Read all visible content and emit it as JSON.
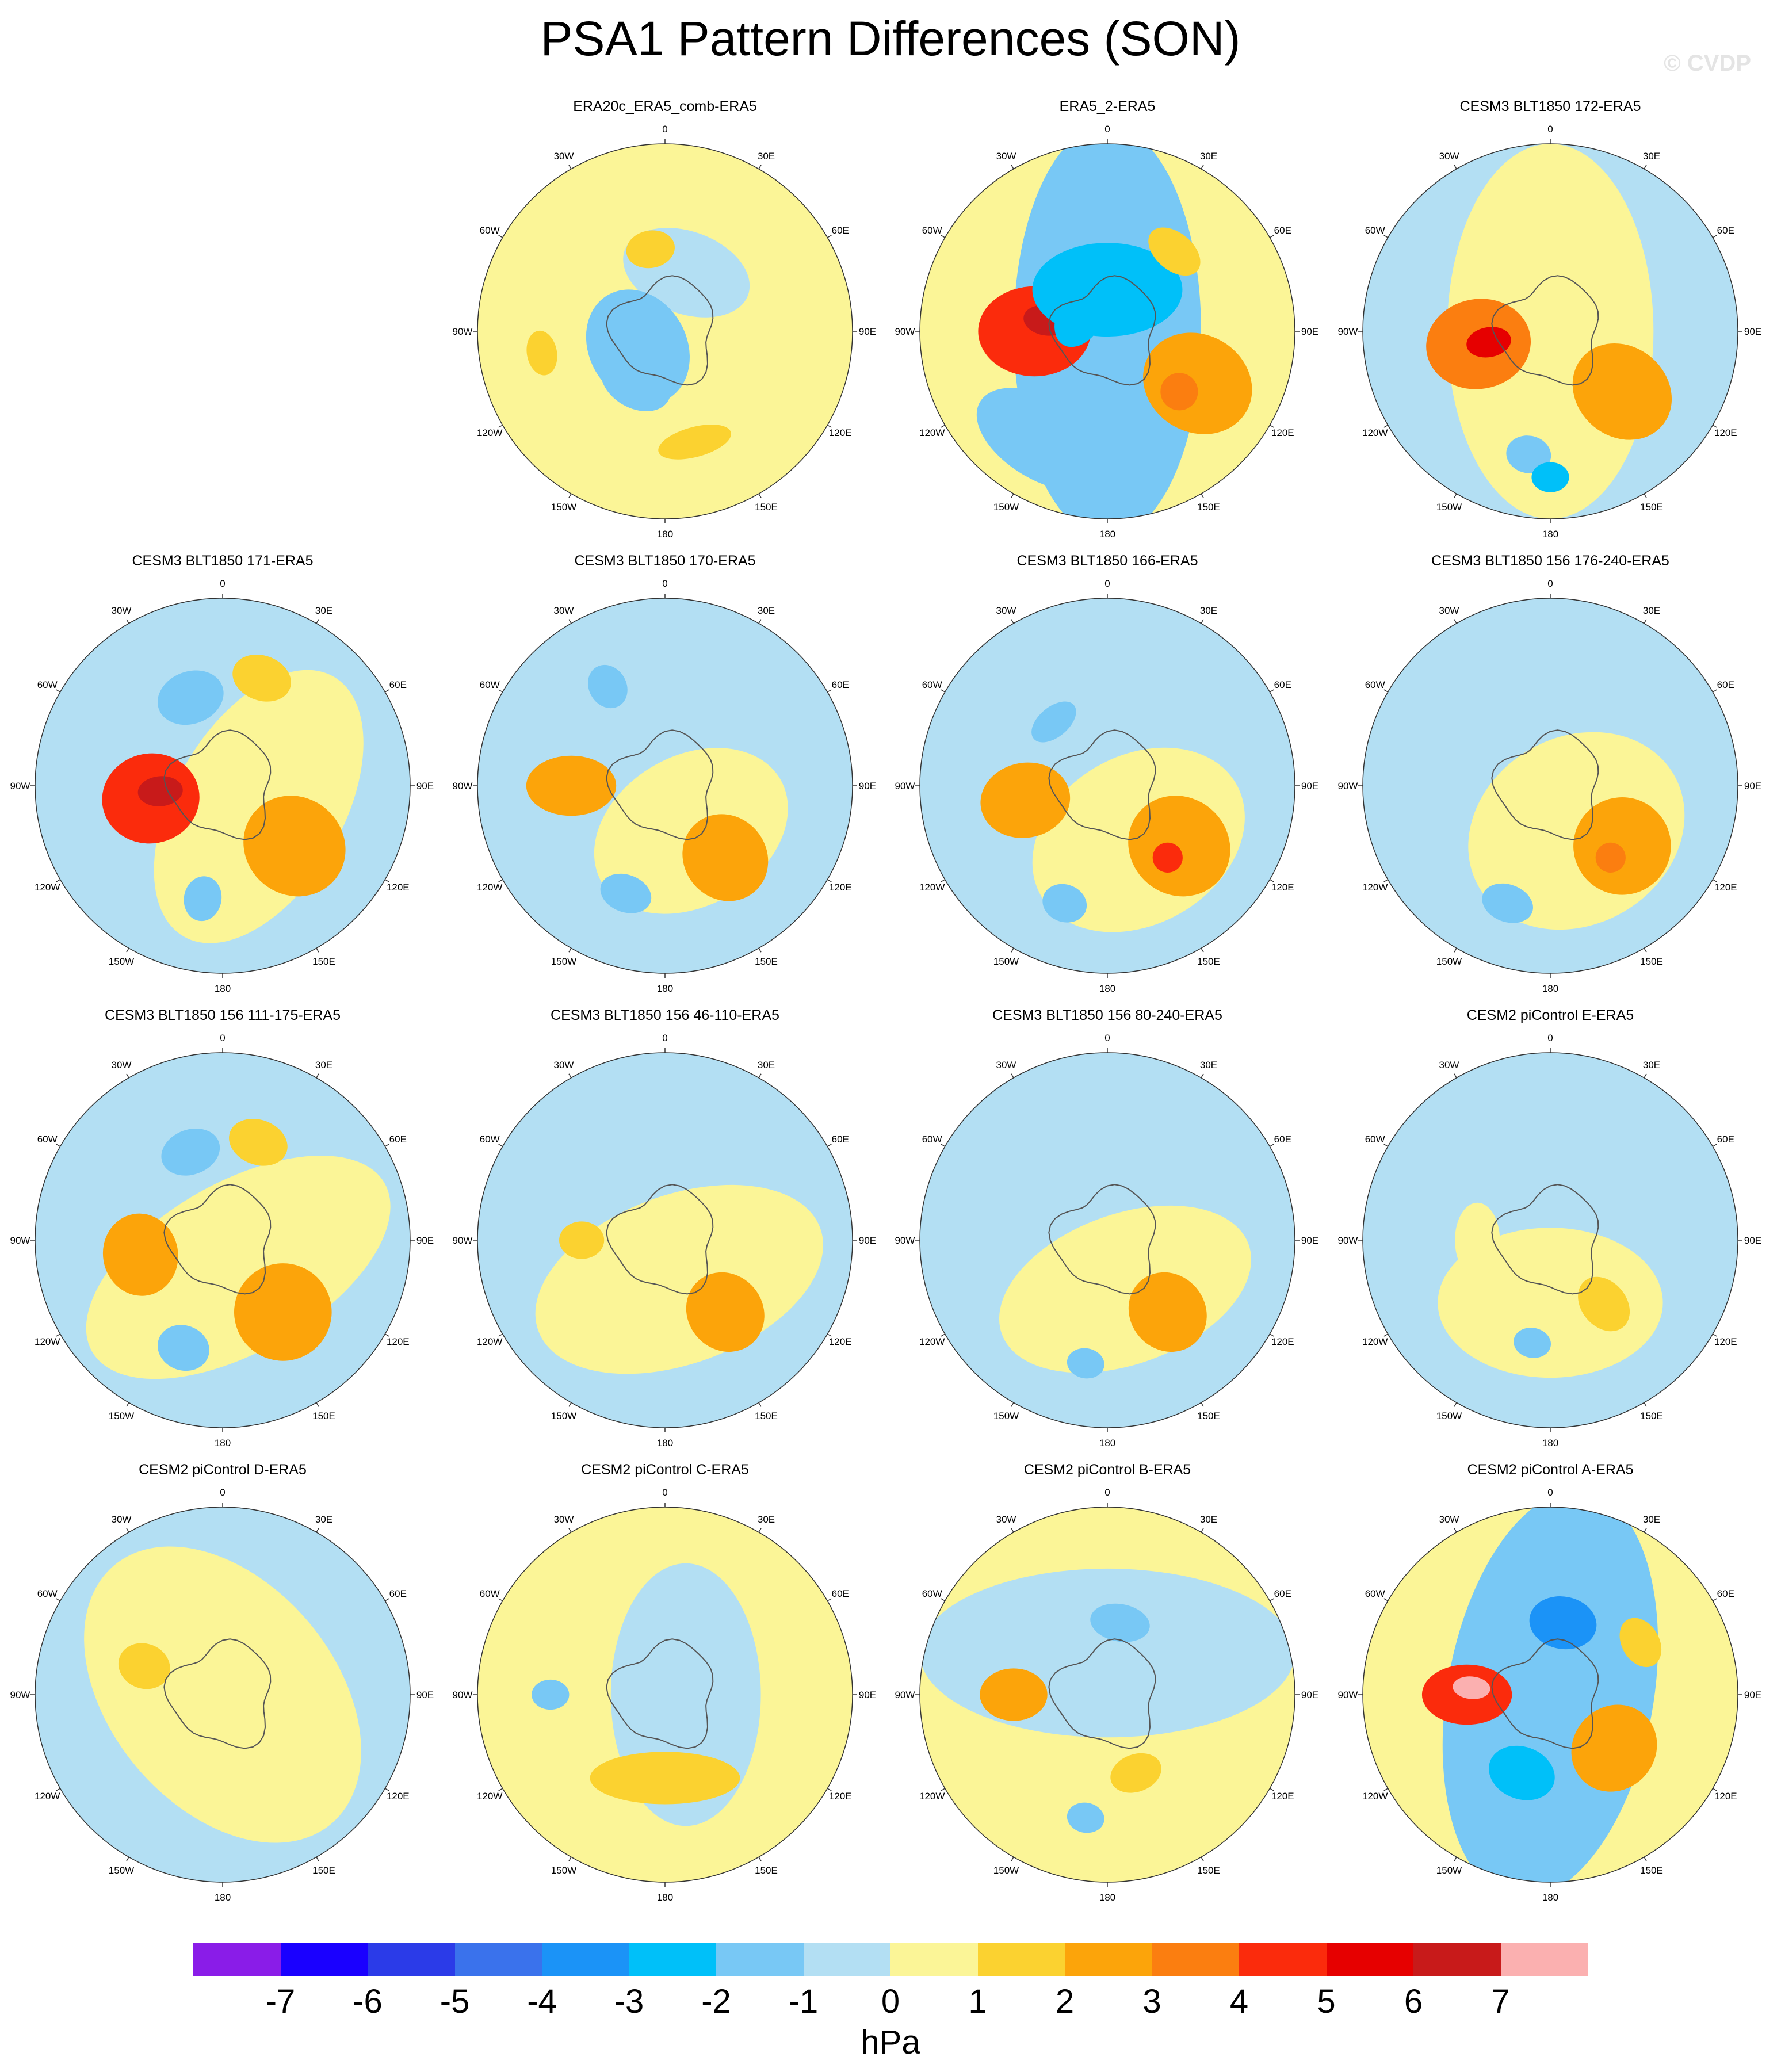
{
  "title": "PSA1 Pattern Differences (SON)",
  "watermark": "© CVDP",
  "colorbar": {
    "labels": [
      "-7",
      "-6",
      "-5",
      "-4",
      "-3",
      "-2",
      "-1",
      "0",
      "1",
      "2",
      "3",
      "4",
      "5",
      "6",
      "7"
    ],
    "colors": [
      "#8a1ce8",
      "#1a00ff",
      "#2b3be8",
      "#3a72ec",
      "#1b93f7",
      "#00c0f9",
      "#78c8f5",
      "#b3dff3",
      "#fbf597",
      "#fbd230",
      "#fca40a",
      "#fb7e10",
      "#fb2b0c",
      "#e60000",
      "#c81a1a",
      "#fbb0b0"
    ],
    "units": "hPa"
  },
  "chart_data": {
    "type": "polar-contour-map",
    "projection": "south-polar-stereographic",
    "variable": "PSA1 pattern difference",
    "units": "hPa",
    "levels": [
      -7,
      -6,
      -5,
      -4,
      -3,
      -2,
      -1,
      0,
      1,
      2,
      3,
      4,
      5,
      6,
      7
    ],
    "longitude_labels": [
      "0",
      "30E",
      "60E",
      "90E",
      "120E",
      "150E",
      "180",
      "150W",
      "120W",
      "90W",
      "60W",
      "30W"
    ],
    "panels": [
      {
        "title": "ERA20c_ERA5_comb-ERA5",
        "row": 0,
        "col": 1,
        "background": 0.5,
        "blobs": [
          {
            "lon": 150,
            "lat": 50,
            "rx": 0.4,
            "ry": 0.42,
            "value": 0.6
          },
          {
            "lon": 20,
            "lat": 30,
            "rx": 0.35,
            "ry": 0.22,
            "value": -0.5
          },
          {
            "lon": -120,
            "lat": 15,
            "rx": 0.32,
            "ry": 0.26,
            "value": -1.5
          },
          {
            "lon": -150,
            "lat": 28,
            "rx": 0.2,
            "ry": 0.14,
            "value": -1.5
          },
          {
            "lon": -100,
            "lat": 60,
            "rx": 0.12,
            "ry": 0.08,
            "value": 1.5
          },
          {
            "lon": 165,
            "lat": 55,
            "rx": 0.2,
            "ry": 0.08,
            "value": 1.5
          },
          {
            "lon": -10,
            "lat": 40,
            "rx": 0.13,
            "ry": 0.1,
            "value": 1.5
          }
        ]
      },
      {
        "title": "ERA5_2-ERA5",
        "row": 0,
        "col": 2,
        "background": 0.5,
        "blobs": [
          {
            "lon": -90,
            "lat": 0,
            "rx": 1.1,
            "ry": 0.5,
            "value": -1.5
          },
          {
            "lon": -90,
            "lat": 35,
            "rx": 0.24,
            "ry": 0.3,
            "value": 4
          },
          {
            "lon": -80,
            "lat": 30,
            "rx": 0.08,
            "ry": 0.12,
            "value": 6.5
          },
          {
            "lon": 0,
            "lat": 20,
            "rx": 0.4,
            "ry": 0.25,
            "value": -2.5
          },
          {
            "lon": -60,
            "lat": 15,
            "rx": 0.18,
            "ry": 0.12,
            "value": -2.5
          },
          {
            "lon": 120,
            "lat": 50,
            "rx": 0.26,
            "ry": 0.3,
            "value": 2.5
          },
          {
            "lon": 130,
            "lat": 45,
            "rx": 0.1,
            "ry": 0.1,
            "value": 3.5
          },
          {
            "lon": -150,
            "lat": 60,
            "rx": 0.4,
            "ry": 0.22,
            "value": -1.5
          },
          {
            "lon": 40,
            "lat": 50,
            "rx": 0.16,
            "ry": 0.1,
            "value": 1.5
          }
        ]
      },
      {
        "title": "CESM3 BLT1850 172-ERA5",
        "row": 0,
        "col": 3,
        "background": -0.5,
        "blobs": [
          {
            "lon": 90,
            "lat": 0,
            "rx": 1.0,
            "ry": 0.55,
            "value": 0.5
          },
          {
            "lon": -100,
            "lat": 35,
            "rx": 0.24,
            "ry": 0.28,
            "value": 3.5
          },
          {
            "lon": -100,
            "lat": 30,
            "rx": 0.08,
            "ry": 0.12,
            "value": 5
          },
          {
            "lon": 130,
            "lat": 45,
            "rx": 0.24,
            "ry": 0.28,
            "value": 2.5
          },
          {
            "lon": -170,
            "lat": 60,
            "rx": 0.12,
            "ry": 0.1,
            "value": -1.5
          },
          {
            "lon": 180,
            "lat": 70,
            "rx": 0.1,
            "ry": 0.08,
            "value": -2.5
          }
        ]
      },
      {
        "title": "CESM3 BLT1850 171-ERA5",
        "row": 1,
        "col": 0,
        "background": -0.5,
        "blobs": [
          {
            "lon": 120,
            "lat": 20,
            "rx": 0.8,
            "ry": 0.45,
            "value": 0.5
          },
          {
            "lon": -100,
            "lat": 35,
            "rx": 0.24,
            "ry": 0.26,
            "value": 4
          },
          {
            "lon": -95,
            "lat": 30,
            "rx": 0.08,
            "ry": 0.12,
            "value": 6.5
          },
          {
            "lon": 130,
            "lat": 45,
            "rx": 0.26,
            "ry": 0.28,
            "value": 2.5
          },
          {
            "lon": -20,
            "lat": 45,
            "rx": 0.18,
            "ry": 0.14,
            "value": -1.5
          },
          {
            "lon": 20,
            "lat": 55,
            "rx": 0.16,
            "ry": 0.12,
            "value": 1.5
          },
          {
            "lon": -170,
            "lat": 55,
            "rx": 0.1,
            "ry": 0.12,
            "value": -1.5
          }
        ]
      },
      {
        "title": "CESM3 BLT1850 170-ERA5",
        "row": 1,
        "col": 1,
        "background": -0.5,
        "blobs": [
          {
            "lon": 150,
            "lat": 25,
            "rx": 0.55,
            "ry": 0.4,
            "value": 0.5
          },
          {
            "lon": -90,
            "lat": 45,
            "rx": 0.16,
            "ry": 0.24,
            "value": 2.5
          },
          {
            "lon": 140,
            "lat": 45,
            "rx": 0.22,
            "ry": 0.24,
            "value": 2.5
          },
          {
            "lon": -160,
            "lat": 55,
            "rx": 0.14,
            "ry": 0.1,
            "value": -1.5
          },
          {
            "lon": -30,
            "lat": 55,
            "rx": 0.1,
            "ry": 0.12,
            "value": -1.5
          }
        ]
      },
      {
        "title": "CESM3 BLT1850 166-ERA5",
        "row": 1,
        "col": 2,
        "background": -0.5,
        "blobs": [
          {
            "lon": 150,
            "lat": 30,
            "rx": 0.6,
            "ry": 0.45,
            "value": 0.5
          },
          {
            "lon": -100,
            "lat": 40,
            "rx": 0.2,
            "ry": 0.24,
            "value": 2.5
          },
          {
            "lon": 130,
            "lat": 45,
            "rx": 0.26,
            "ry": 0.28,
            "value": 2.5
          },
          {
            "lon": 140,
            "lat": 45,
            "rx": 0.08,
            "ry": 0.08,
            "value": 4
          },
          {
            "lon": -160,
            "lat": 60,
            "rx": 0.12,
            "ry": 0.1,
            "value": -1.5
          },
          {
            "lon": -40,
            "lat": 40,
            "rx": 0.14,
            "ry": 0.08,
            "value": -1.5
          }
        ]
      },
      {
        "title": "CESM3 BLT1850 156 176-240-ERA5",
        "row": 1,
        "col": 3,
        "background": -0.5,
        "blobs": [
          {
            "lon": 150,
            "lat": 25,
            "rx": 0.6,
            "ry": 0.5,
            "value": 0.5
          },
          {
            "lon": 130,
            "lat": 45,
            "rx": 0.26,
            "ry": 0.26,
            "value": 2.5
          },
          {
            "lon": 140,
            "lat": 45,
            "rx": 0.08,
            "ry": 0.08,
            "value": 3.5
          },
          {
            "lon": -160,
            "lat": 60,
            "rx": 0.14,
            "ry": 0.1,
            "value": -1.5
          }
        ]
      },
      {
        "title": "CESM3 BLT1850 156 111-175-ERA5",
        "row": 2,
        "col": 0,
        "background": -0.5,
        "blobs": [
          {
            "lon": 150,
            "lat": 15,
            "rx": 0.9,
            "ry": 0.45,
            "value": 0.5
          },
          {
            "lon": -100,
            "lat": 40,
            "rx": 0.22,
            "ry": 0.2,
            "value": 2.5
          },
          {
            "lon": 140,
            "lat": 45,
            "rx": 0.26,
            "ry": 0.26,
            "value": 2.5
          },
          {
            "lon": -160,
            "lat": 55,
            "rx": 0.14,
            "ry": 0.12,
            "value": -2
          },
          {
            "lon": -20,
            "lat": 45,
            "rx": 0.16,
            "ry": 0.12,
            "value": -1.5
          },
          {
            "lon": 20,
            "lat": 50,
            "rx": 0.16,
            "ry": 0.12,
            "value": 1.5
          }
        ]
      },
      {
        "title": "CESM3 BLT1850 156 46-110-ERA5",
        "row": 2,
        "col": 1,
        "background": -0.5,
        "blobs": [
          {
            "lon": 160,
            "lat": 20,
            "rx": 0.8,
            "ry": 0.45,
            "value": 0.5
          },
          {
            "lon": 140,
            "lat": 45,
            "rx": 0.2,
            "ry": 0.22,
            "value": 2
          },
          {
            "lon": -90,
            "lat": 40,
            "rx": 0.1,
            "ry": 0.12,
            "value": 1.5
          }
        ]
      },
      {
        "title": "CESM3 BLT1850 156 80-240-ERA5",
        "row": 2,
        "col": 2,
        "background": -0.5,
        "blobs": [
          {
            "lon": 160,
            "lat": 25,
            "rx": 0.7,
            "ry": 0.4,
            "value": 0.5
          },
          {
            "lon": 140,
            "lat": 45,
            "rx": 0.2,
            "ry": 0.22,
            "value": 2.5
          },
          {
            "lon": -170,
            "lat": 60,
            "rx": 0.1,
            "ry": 0.08,
            "value": -1.5
          }
        ]
      },
      {
        "title": "CESM2 piControl E-ERA5",
        "row": 2,
        "col": 3,
        "background": -0.5,
        "blobs": [
          {
            "lon": 180,
            "lat": 30,
            "rx": 0.6,
            "ry": 0.4,
            "value": 0.5
          },
          {
            "lon": 140,
            "lat": 40,
            "rx": 0.12,
            "ry": 0.16,
            "value": 1.5
          },
          {
            "lon": -170,
            "lat": 50,
            "rx": 0.1,
            "ry": 0.08,
            "value": -1.5
          },
          {
            "lon": -90,
            "lat": 35,
            "rx": 0.2,
            "ry": 0.12,
            "value": 0.5
          }
        ]
      },
      {
        "title": "CESM2 piControl D-ERA5",
        "row": 3,
        "col": 0,
        "background": -0.5,
        "blobs": [
          {
            "lon": -130,
            "lat": 0,
            "rx": 0.9,
            "ry": 0.6,
            "value": 0.5
          },
          {
            "lon": -70,
            "lat": 40,
            "rx": 0.12,
            "ry": 0.14,
            "value": 1.5
          }
        ]
      },
      {
        "title": "CESM2 piControl C-ERA5",
        "row": 3,
        "col": 1,
        "background": 0.5,
        "blobs": [
          {
            "lon": 90,
            "lat": 10,
            "rx": 0.7,
            "ry": 0.4,
            "value": -0.5
          },
          {
            "lon": 180,
            "lat": 40,
            "rx": 0.4,
            "ry": 0.14,
            "value": 1.5
          },
          {
            "lon": -90,
            "lat": 55,
            "rx": 0.08,
            "ry": 0.1,
            "value": -1.5
          }
        ]
      },
      {
        "title": "CESM2 piControl B-ERA5",
        "row": 3,
        "col": 2,
        "background": 0.5,
        "blobs": [
          {
            "lon": 0,
            "lat": 20,
            "rx": 1.0,
            "ry": 0.45,
            "value": -0.5
          },
          {
            "lon": -90,
            "lat": 45,
            "rx": 0.14,
            "ry": 0.18,
            "value": 2
          },
          {
            "lon": 10,
            "lat": 35,
            "rx": 0.16,
            "ry": 0.1,
            "value": -1.5
          },
          {
            "lon": 160,
            "lat": 40,
            "rx": 0.14,
            "ry": 0.1,
            "value": 1.5
          },
          {
            "lon": -170,
            "lat": 60,
            "rx": 0.1,
            "ry": 0.08,
            "value": -1.5
          }
        ]
      },
      {
        "title": "CESM2 piControl A-ERA5",
        "row": 3,
        "col": 3,
        "background": 0.5,
        "blobs": [
          {
            "lon": -80,
            "lat": 0,
            "rx": 1.1,
            "ry": 0.55,
            "value": -1.5
          },
          {
            "lon": -90,
            "lat": 40,
            "rx": 0.16,
            "ry": 0.24,
            "value": 4
          },
          {
            "lon": -85,
            "lat": 38,
            "rx": 0.06,
            "ry": 0.1,
            "value": 7.5
          },
          {
            "lon": 10,
            "lat": 35,
            "rx": 0.18,
            "ry": 0.14,
            "value": -3.5
          },
          {
            "lon": 130,
            "lat": 40,
            "rx": 0.24,
            "ry": 0.22,
            "value": 2
          },
          {
            "lon": 60,
            "lat": 50,
            "rx": 0.14,
            "ry": 0.1,
            "value": 1.5
          },
          {
            "lon": -160,
            "lat": 40,
            "rx": 0.18,
            "ry": 0.14,
            "value": -2.5
          }
        ]
      }
    ]
  }
}
